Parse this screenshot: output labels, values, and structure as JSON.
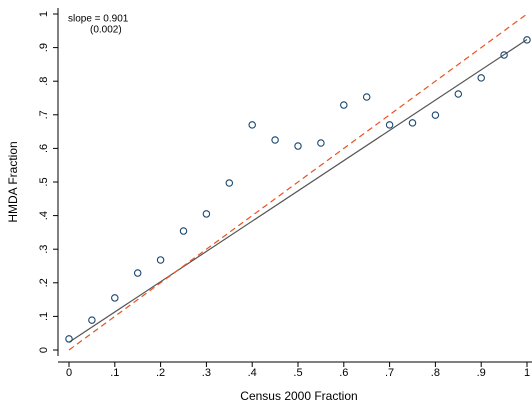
{
  "chart_data": {
    "type": "scatter",
    "x_label": "Census 2000 Fraction",
    "y_label": "HMDA Fraction",
    "annotations": [
      "slope = 0.901",
      "(0.002)"
    ],
    "x": [
      0,
      0.05,
      0.1,
      0.15,
      0.2,
      0.25,
      0.3,
      0.35,
      0.4,
      0.45,
      0.5,
      0.55,
      0.6,
      0.65,
      0.7,
      0.75,
      0.8,
      0.85,
      0.9,
      0.95,
      1
    ],
    "values": [
      0.033,
      0.089,
      0.155,
      0.229,
      0.268,
      0.354,
      0.405,
      0.497,
      0.67,
      0.625,
      0.607,
      0.616,
      0.729,
      0.753,
      0.67,
      0.676,
      0.699,
      0.762,
      0.81,
      0.878,
      0.923
    ],
    "color": "#1a476f",
    "lines": [
      {
        "x": [
          0,
          1
        ],
        "values": [
          0.023,
          0.924
        ],
        "color": "#555555",
        "dashed": false
      },
      {
        "x": [
          0,
          1
        ],
        "values": [
          0,
          1
        ],
        "color": "#e8531f",
        "dashed": true
      }
    ],
    "xlim": [
      0,
      1
    ],
    "ylim": [
      0,
      1
    ],
    "xticks": [
      0,
      {
        "value": 0.1,
        "label": ".1"
      },
      {
        "value": 0.2,
        "label": ".2"
      },
      {
        "value": 0.3,
        "label": ".3"
      },
      {
        "value": 0.4,
        "label": ".4"
      },
      {
        "value": 0.5,
        "label": ".5"
      },
      {
        "value": 0.6,
        "label": ".6"
      },
      {
        "value": 0.7,
        "label": ".7"
      },
      {
        "value": 0.8,
        "label": ".8"
      },
      {
        "value": 0.9,
        "label": ".9"
      },
      1
    ],
    "yticks": [
      0,
      {
        "value": 0.1,
        "label": ".1"
      },
      {
        "value": 0.2,
        "label": ".2"
      },
      {
        "value": 0.3,
        "label": ".3"
      },
      {
        "value": 0.4,
        "label": ".4"
      },
      {
        "value": 0.5,
        "label": ".5"
      },
      {
        "value": 0.6,
        "label": ".6"
      },
      {
        "value": 0.7,
        "label": ".7"
      },
      {
        "value": 0.8,
        "label": ".8"
      },
      {
        "value": 0.9,
        "label": ".9"
      },
      1
    ]
  }
}
